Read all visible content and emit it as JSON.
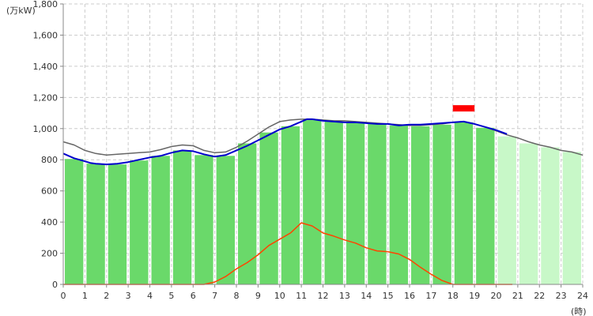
{
  "chart_data": {
    "type": "bar",
    "y_unit_label": "(万kW)",
    "x_unit_label": "(時)",
    "ylim": [
      0,
      1800
    ],
    "yticks": [
      0,
      200,
      400,
      600,
      800,
      1000,
      1200,
      1400,
      1600,
      1800
    ],
    "ytick_labels": [
      "0",
      "200",
      "400",
      "600",
      "800",
      "1,000",
      "1,200",
      "1,400",
      "1,600",
      "1,800"
    ],
    "xlim": [
      0,
      24
    ],
    "xticks": [
      0,
      1,
      2,
      3,
      4,
      5,
      6,
      7,
      8,
      9,
      10,
      11,
      12,
      13,
      14,
      15,
      16,
      17,
      18,
      19,
      20,
      21,
      22,
      23,
      24
    ],
    "grid": true,
    "hourly_bars": {
      "hours": [
        0,
        1,
        2,
        3,
        4,
        5,
        6,
        7,
        8,
        9,
        10,
        11,
        12,
        13,
        14,
        15,
        16,
        17,
        18,
        19,
        20,
        21,
        22,
        23
      ],
      "values": [
        805,
        775,
        770,
        795,
        825,
        860,
        830,
        825,
        905,
        975,
        1015,
        1060,
        1045,
        1040,
        1030,
        1020,
        1015,
        1025,
        1040,
        1005,
        950,
        905,
        880,
        850
      ],
      "actual_through_hour": 20
    },
    "series": [
      {
        "role": "forecast_demand",
        "color": "#666666",
        "x": [
          0,
          0.5,
          1,
          1.5,
          2,
          2.5,
          3,
          3.5,
          4,
          4.5,
          5,
          5.5,
          6,
          6.5,
          7,
          7.5,
          8,
          8.5,
          9,
          9.5,
          10,
          10.5,
          11,
          11.5,
          12,
          12.5,
          13,
          13.5,
          14,
          14.5,
          15,
          15.5,
          16,
          16.5,
          17,
          17.5,
          18,
          18.5,
          19,
          19.5,
          20,
          20.5,
          21,
          21.5,
          22,
          22.5,
          23,
          23.5,
          24
        ],
        "y": [
          915,
          895,
          860,
          840,
          830,
          835,
          840,
          845,
          850,
          865,
          885,
          895,
          890,
          860,
          845,
          850,
          880,
          920,
          965,
          1010,
          1045,
          1055,
          1060,
          1060,
          1055,
          1050,
          1050,
          1045,
          1040,
          1035,
          1030,
          1025,
          1020,
          1020,
          1025,
          1030,
          1040,
          1045,
          1030,
          1010,
          985,
          960,
          940,
          915,
          895,
          880,
          860,
          850,
          830
        ]
      },
      {
        "role": "actual_demand",
        "color": "#0000cc",
        "x": [
          0,
          0.25,
          0.5,
          0.75,
          1,
          1.25,
          1.5,
          2,
          2.5,
          3,
          3.5,
          4,
          4.5,
          5,
          5.5,
          6,
          6.5,
          7,
          7.5,
          8,
          8.5,
          9,
          9.5,
          10,
          10.5,
          11,
          11.25,
          11.5,
          12,
          12.5,
          13,
          13.5,
          14,
          14.5,
          15,
          15.5,
          16,
          16.5,
          17,
          17.5,
          18,
          18.5,
          19,
          19.5,
          20,
          20.5
        ],
        "y": [
          840,
          825,
          810,
          800,
          790,
          780,
          775,
          770,
          775,
          785,
          800,
          815,
          825,
          845,
          860,
          855,
          835,
          820,
          830,
          860,
          890,
          925,
          960,
          995,
          1015,
          1045,
          1060,
          1060,
          1050,
          1045,
          1040,
          1040,
          1035,
          1030,
          1030,
          1020,
          1025,
          1025,
          1030,
          1035,
          1040,
          1045,
          1030,
          1010,
          990,
          965
        ]
      },
      {
        "role": "solar_output",
        "color": "#ff4400",
        "x": [
          0,
          6.5,
          7,
          7.5,
          8,
          8.5,
          9,
          9.5,
          10,
          10.5,
          11,
          11.5,
          12,
          12.5,
          13,
          13.5,
          14,
          14.5,
          15,
          15.5,
          16,
          16.5,
          17,
          17.5,
          18,
          20.75
        ],
        "y": [
          0,
          0,
          15,
          50,
          100,
          140,
          190,
          250,
          290,
          330,
          395,
          375,
          330,
          310,
          285,
          265,
          235,
          215,
          210,
          195,
          160,
          110,
          65,
          25,
          0,
          0
        ]
      }
    ],
    "peak_marker": {
      "hour_start": 18,
      "hour_end": 19,
      "value": 1130,
      "color": "#ff0000"
    },
    "colors": {
      "bar_actual": "#6ad96a",
      "bar_forecast": "#c8f8c8",
      "grid": "#cccccc"
    }
  }
}
